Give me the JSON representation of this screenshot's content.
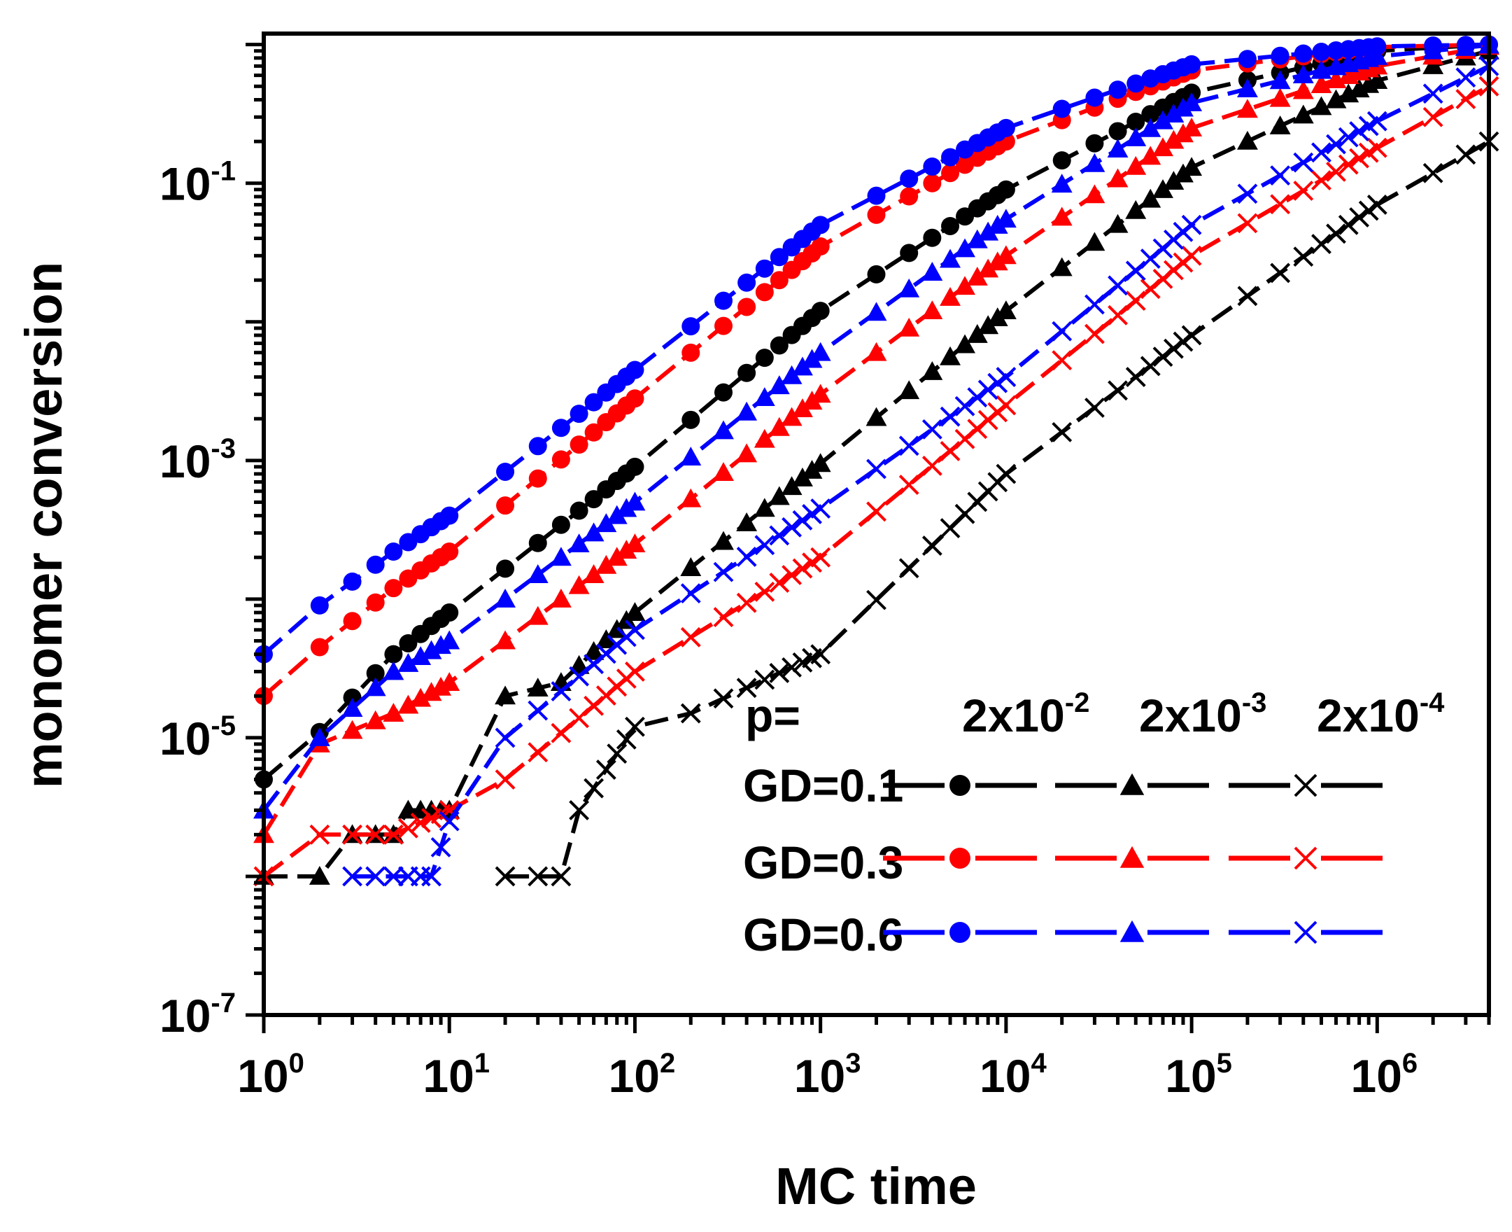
{
  "chart_data": {
    "type": "line",
    "scale": {
      "x": "log",
      "y": "log"
    },
    "xlabel": "MC time",
    "ylabel": "monomer conversion",
    "xlim": [
      1,
      4000000
    ],
    "ylim": [
      1e-07,
      1.2
    ],
    "x_ticks": [
      {
        "value": 1,
        "base": "10",
        "exp": "0"
      },
      {
        "value": 10,
        "base": "10",
        "exp": "1"
      },
      {
        "value": 100,
        "base": "10",
        "exp": "2"
      },
      {
        "value": 1000,
        "base": "10",
        "exp": "3"
      },
      {
        "value": 10000,
        "base": "10",
        "exp": "4"
      },
      {
        "value": 100000,
        "base": "10",
        "exp": "5"
      },
      {
        "value": 1000000,
        "base": "10",
        "exp": "6"
      }
    ],
    "y_ticks": [
      {
        "value": 1e-07,
        "base": "10",
        "exp": "-7"
      },
      {
        "value": 1e-05,
        "base": "10",
        "exp": "-5"
      },
      {
        "value": 0.001,
        "base": "10",
        "exp": "-3"
      },
      {
        "value": 0.1,
        "base": "10",
        "exp": "-1"
      }
    ],
    "legend": {
      "position": "bottom-right",
      "p_label": "p=",
      "p_values": [
        {
          "base": "2x10",
          "exp": "-2"
        },
        {
          "base": "2x10",
          "exp": "-3"
        },
        {
          "base": "2x10",
          "exp": "-4"
        }
      ],
      "row_labels": [
        "GD=0.1",
        "GD=0.3",
        "GD=0.6"
      ]
    },
    "series": [
      {
        "name": "GD=0.1, p=2x10^-2",
        "gd": "0.1",
        "p": "2x10^-2",
        "color": "#000000",
        "marker": "circle",
        "x": [
          1,
          2,
          5,
          10,
          100,
          1000,
          10000,
          100000,
          1000000,
          4000000
        ],
        "y": [
          5e-06,
          1.1e-05,
          4e-05,
          8e-05,
          0.0009,
          0.012,
          0.09,
          0.45,
          0.9,
          1.0
        ]
      },
      {
        "name": "GD=0.3, p=2x10^-2",
        "gd": "0.3",
        "p": "2x10^-2",
        "color": "#ff0000",
        "marker": "circle",
        "x": [
          1,
          2,
          5,
          10,
          100,
          1000,
          10000,
          100000,
          1000000,
          4000000
        ],
        "y": [
          2e-05,
          4.5e-05,
          0.00012,
          0.00022,
          0.0028,
          0.035,
          0.2,
          0.65,
          0.96,
          1.0
        ]
      },
      {
        "name": "GD=0.6, p=2x10^-2",
        "gd": "0.6",
        "p": "2x10^-2",
        "color": "#0000ff",
        "marker": "circle",
        "x": [
          1,
          2,
          5,
          10,
          100,
          1000,
          10000,
          100000,
          1000000,
          4000000
        ],
        "y": [
          4e-05,
          9e-05,
          0.00022,
          0.0004,
          0.0045,
          0.05,
          0.25,
          0.72,
          0.97,
          1.0
        ]
      },
      {
        "name": "GD=0.1, p=2x10^-3",
        "gd": "0.1",
        "p": "2x10^-3",
        "color": "#000000",
        "marker": "triangle",
        "x": [
          1,
          2,
          3,
          5,
          6,
          10,
          20,
          40,
          100,
          1000,
          10000,
          100000,
          1000000,
          4000000
        ],
        "y": [
          1e-06,
          1e-06,
          2e-06,
          2e-06,
          3e-06,
          3e-06,
          2e-05,
          2.5e-05,
          8e-05,
          0.00095,
          0.012,
          0.13,
          0.55,
          0.9
        ]
      },
      {
        "name": "GD=0.3, p=2x10^-3",
        "gd": "0.3",
        "p": "2x10^-3",
        "color": "#ff0000",
        "marker": "triangle",
        "x": [
          1,
          2,
          5,
          10,
          100,
          1000,
          10000,
          100000,
          1000000,
          4000000
        ],
        "y": [
          2e-06,
          9e-06,
          1.5e-05,
          2.5e-05,
          0.00025,
          0.003,
          0.03,
          0.25,
          0.7,
          0.97
        ]
      },
      {
        "name": "GD=0.6, p=2x10^-3",
        "gd": "0.6",
        "p": "2x10^-3",
        "color": "#0000ff",
        "marker": "triangle",
        "x": [
          1,
          2,
          5,
          10,
          100,
          1000,
          10000,
          100000,
          1000000,
          4000000
        ],
        "y": [
          3e-06,
          1e-05,
          3e-05,
          5e-05,
          0.0005,
          0.006,
          0.055,
          0.38,
          0.82,
          0.99
        ]
      },
      {
        "name": "GD=0.1, p=2x10^-4",
        "gd": "0.1",
        "p": "2x10^-4",
        "color": "#000000",
        "marker": "x",
        "x": [
          20,
          40,
          50,
          100,
          200,
          1000,
          10000,
          100000,
          1000000,
          4000000
        ],
        "y": [
          1e-06,
          1e-06,
          3e-06,
          1.2e-05,
          1.5e-05,
          4e-05,
          0.0008,
          0.008,
          0.07,
          0.2
        ]
      },
      {
        "name": "GD=0.3, p=2x10^-4",
        "gd": "0.3",
        "p": "2x10^-4",
        "color": "#ff0000",
        "marker": "x",
        "x": [
          1,
          2,
          5,
          10,
          20,
          100,
          1000,
          10000,
          100000,
          1000000,
          4000000
        ],
        "y": [
          1e-06,
          2e-06,
          2e-06,
          3e-06,
          5e-06,
          3e-05,
          0.0002,
          0.0025,
          0.03,
          0.18,
          0.5
        ]
      },
      {
        "name": "GD=0.6, p=2x10^-4",
        "gd": "0.6",
        "p": "2x10^-4",
        "color": "#0000ff",
        "marker": "x",
        "x": [
          3,
          8,
          10,
          20,
          100,
          1000,
          10000,
          100000,
          1000000,
          4000000
        ],
        "y": [
          1e-06,
          1e-06,
          2.5e-06,
          1e-05,
          6e-05,
          0.00045,
          0.004,
          0.05,
          0.28,
          0.7
        ]
      }
    ]
  }
}
